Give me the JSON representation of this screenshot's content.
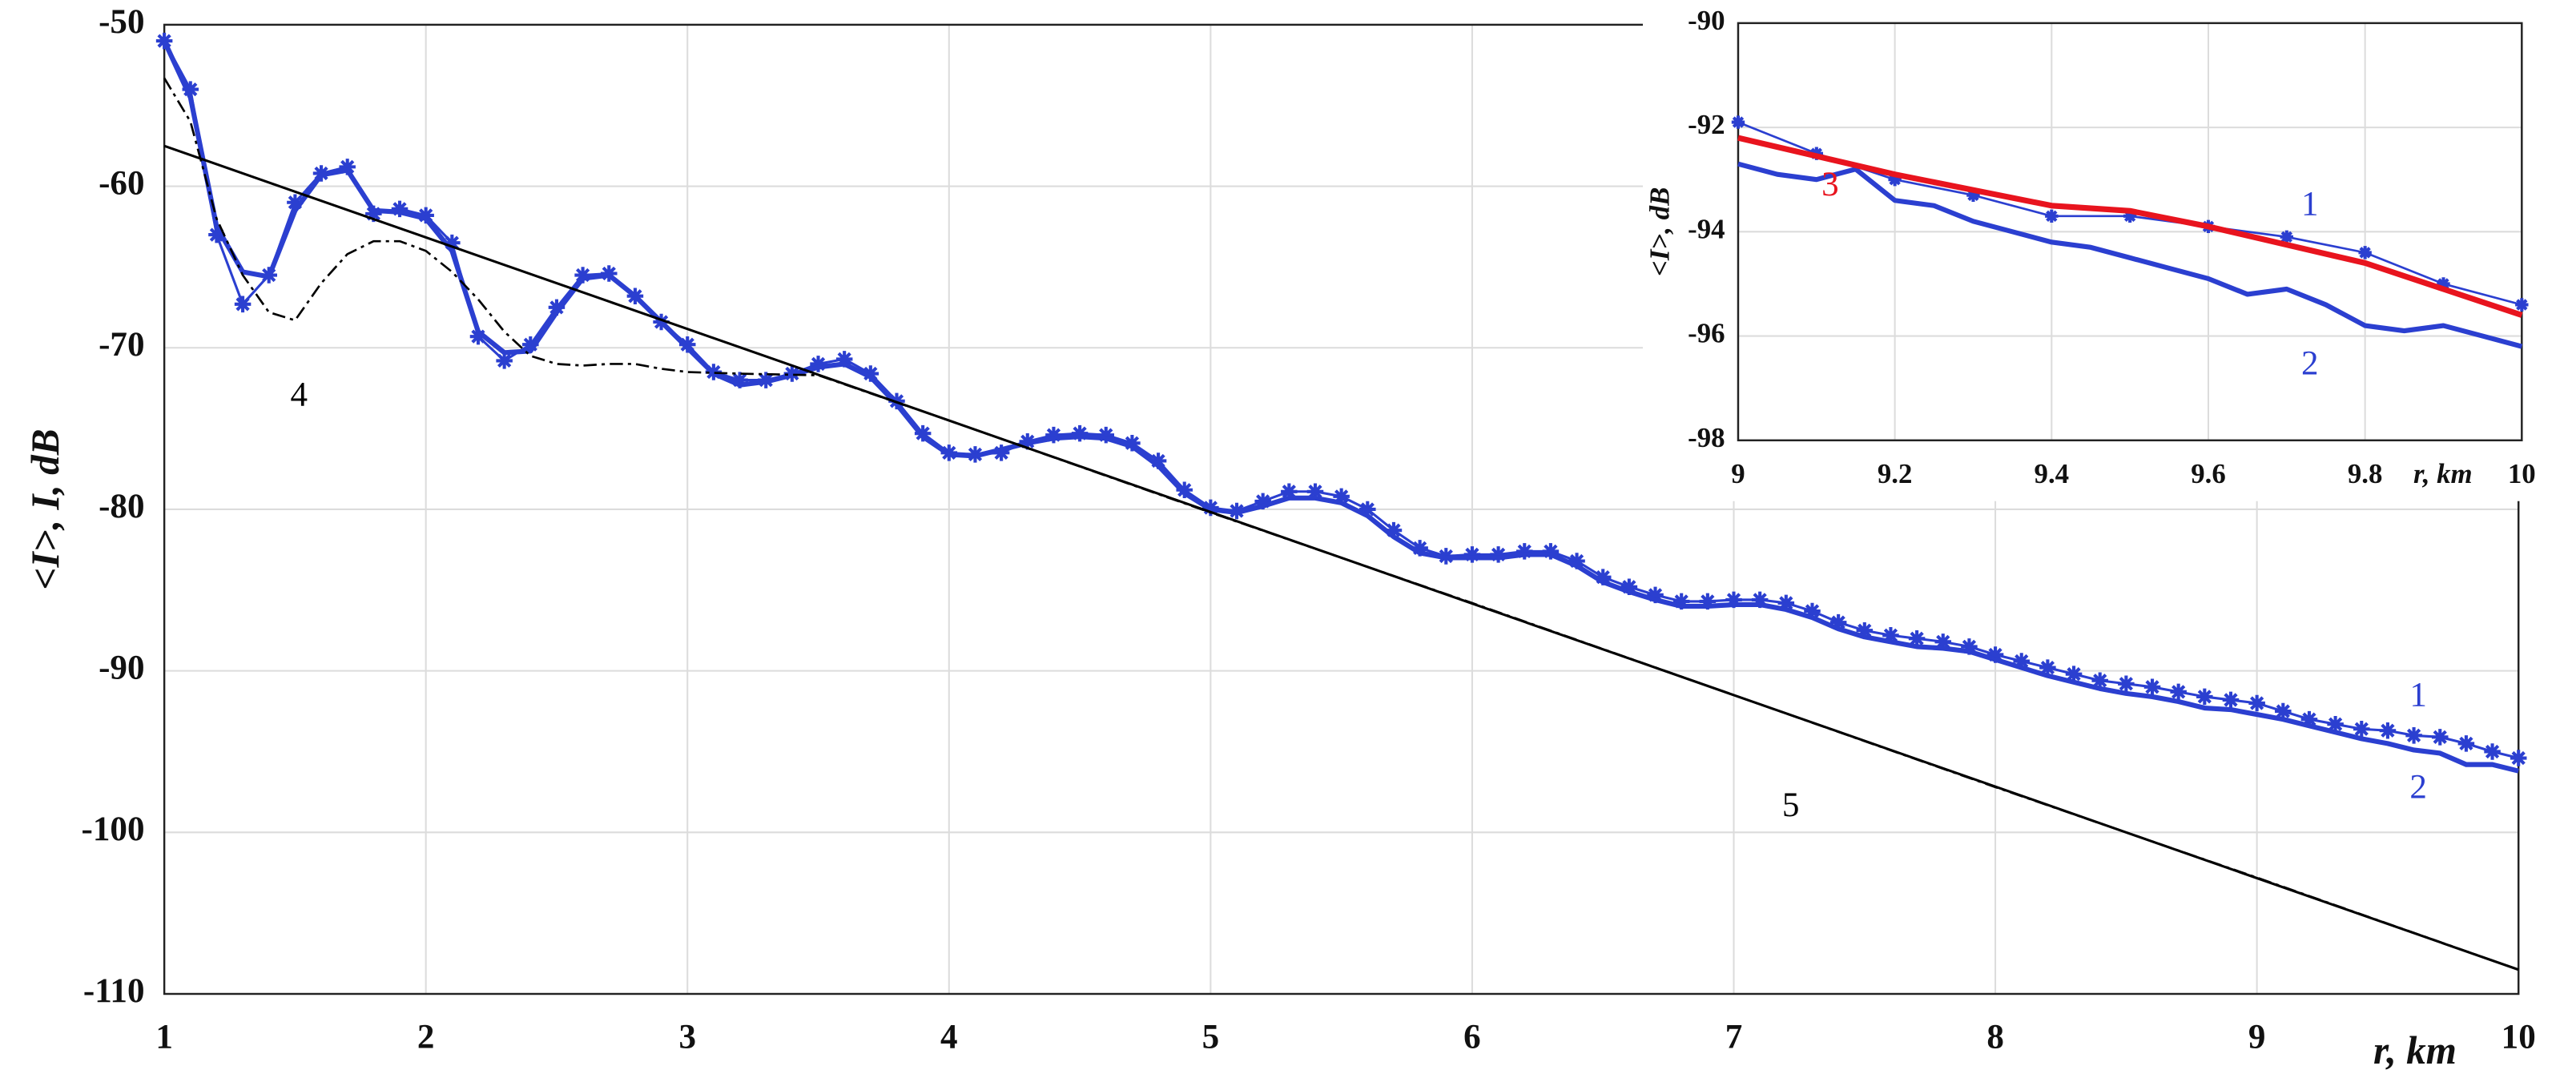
{
  "chart_data": [
    {
      "type": "line",
      "x_label": "r, km",
      "y_label": "<I>, I, dB",
      "xlim": [
        1,
        10
      ],
      "ylim": [
        -110,
        -50
      ],
      "xticks": [
        1,
        2,
        3,
        4,
        5,
        6,
        7,
        8,
        9,
        10
      ],
      "yticks": [
        -110,
        -100,
        -90,
        -80,
        -70,
        -60,
        -50
      ],
      "grid": true,
      "series": [
        {
          "name": "1",
          "color": "#2b3fd0",
          "marker": "star",
          "linewidth": 1.5,
          "x": [
            1,
            1.1,
            1.2,
            1.3,
            1.4,
            1.5,
            1.6,
            1.7,
            1.8,
            1.9,
            2,
            2.1,
            2.2,
            2.3,
            2.4,
            2.5,
            2.6,
            2.7,
            2.8,
            2.9,
            3,
            3.1,
            3.2,
            3.3,
            3.4,
            3.5,
            3.6,
            3.7,
            3.8,
            3.9,
            4,
            4.1,
            4.2,
            4.3,
            4.4,
            4.5,
            4.6,
            4.7,
            4.8,
            4.9,
            5,
            5.1,
            5.2,
            5.3,
            5.4,
            5.5,
            5.6,
            5.7,
            5.8,
            5.9,
            6,
            6.1,
            6.2,
            6.3,
            6.4,
            6.5,
            6.6,
            6.7,
            6.8,
            6.9,
            7,
            7.1,
            7.2,
            7.3,
            7.4,
            7.5,
            7.6,
            7.7,
            7.8,
            7.9,
            8,
            8.1,
            8.2,
            8.3,
            8.4,
            8.5,
            8.6,
            8.7,
            8.8,
            8.9,
            9,
            9.1,
            9.2,
            9.3,
            9.4,
            9.5,
            9.6,
            9.7,
            9.8,
            9.9,
            10
          ],
          "values": [
            -51,
            -54,
            -63,
            -67.3,
            -65.5,
            -61,
            -59.2,
            -58.8,
            -61.7,
            -61.4,
            -61.8,
            -63.5,
            -69.3,
            -70.8,
            -69.8,
            -67.5,
            -65.5,
            -65.4,
            -66.8,
            -68.4,
            -69.8,
            -71.5,
            -72,
            -72,
            -71.6,
            -71,
            -70.7,
            -71.6,
            -73.3,
            -75.3,
            -76.5,
            -76.6,
            -76.5,
            -75.8,
            -75.4,
            -75.3,
            -75.4,
            -75.9,
            -77,
            -78.8,
            -79.9,
            -80.1,
            -79.5,
            -78.9,
            -78.9,
            -79.2,
            -80,
            -81.3,
            -82.4,
            -82.9,
            -82.8,
            -82.8,
            -82.6,
            -82.6,
            -83.2,
            -84.2,
            -84.8,
            -85.3,
            -85.7,
            -85.7,
            -85.6,
            -85.6,
            -85.8,
            -86.3,
            -87,
            -87.5,
            -87.8,
            -88,
            -88.2,
            -88.5,
            -89,
            -89.4,
            -89.8,
            -90.2,
            -90.6,
            -90.8,
            -91,
            -91.3,
            -91.6,
            -91.8,
            -92,
            -92.5,
            -93,
            -93.3,
            -93.6,
            -93.7,
            -94,
            -94.1,
            -94.5,
            -95,
            -95.4
          ]
        },
        {
          "name": "2",
          "color": "#2b3fd0",
          "linewidth": 3,
          "x": [
            1,
            1.1,
            1.2,
            1.3,
            1.4,
            1.5,
            1.6,
            1.7,
            1.8,
            1.9,
            2,
            2.1,
            2.2,
            2.3,
            2.4,
            2.5,
            2.6,
            2.7,
            2.8,
            2.9,
            3,
            3.1,
            3.2,
            3.3,
            3.4,
            3.5,
            3.6,
            3.7,
            3.8,
            3.9,
            4,
            4.1,
            4.2,
            4.3,
            4.4,
            4.5,
            4.6,
            4.7,
            4.8,
            4.9,
            5,
            5.1,
            5.2,
            5.3,
            5.4,
            5.5,
            5.6,
            5.7,
            5.8,
            5.9,
            6,
            6.1,
            6.2,
            6.3,
            6.4,
            6.5,
            6.6,
            6.7,
            6.8,
            6.9,
            7,
            7.1,
            7.2,
            7.3,
            7.4,
            7.5,
            7.6,
            7.7,
            7.8,
            7.9,
            8,
            8.1,
            8.2,
            8.3,
            8.4,
            8.5,
            8.6,
            8.7,
            8.8,
            8.9,
            9,
            9.1,
            9.2,
            9.3,
            9.4,
            9.5,
            9.6,
            9.7,
            9.8,
            9.9,
            10
          ],
          "values": [
            -51,
            -54.5,
            -62.5,
            -65.3,
            -65.6,
            -61.5,
            -59.3,
            -59,
            -61.5,
            -61.6,
            -62,
            -64,
            -69,
            -70.3,
            -70.2,
            -67.8,
            -65.7,
            -65.5,
            -66.8,
            -68.4,
            -70,
            -71.6,
            -72.3,
            -72.1,
            -71.7,
            -71.2,
            -71,
            -71.8,
            -73.5,
            -75.5,
            -76.6,
            -76.7,
            -76.3,
            -75.9,
            -75.6,
            -75.5,
            -75.6,
            -76.1,
            -77.3,
            -79,
            -80,
            -80.2,
            -79.8,
            -79.3,
            -79.3,
            -79.6,
            -80.4,
            -81.7,
            -82.7,
            -83,
            -83,
            -83,
            -82.8,
            -82.8,
            -83.5,
            -84.5,
            -85.1,
            -85.6,
            -86,
            -86,
            -85.9,
            -85.9,
            -86.2,
            -86.7,
            -87.4,
            -87.9,
            -88.2,
            -88.5,
            -88.6,
            -88.8,
            -89.3,
            -89.8,
            -90.3,
            -90.7,
            -91.1,
            -91.4,
            -91.6,
            -91.9,
            -92.3,
            -92.4,
            -92.7,
            -93,
            -93.4,
            -93.8,
            -94.2,
            -94.5,
            -94.9,
            -95.1,
            -95.8,
            -95.8,
            -96.2
          ]
        },
        {
          "name": "4",
          "color": "#000000",
          "dash": "dashdot",
          "linewidth": 1.3,
          "x": [
            1,
            1.1,
            1.2,
            1.3,
            1.4,
            1.5,
            1.6,
            1.7,
            1.8,
            1.9,
            2,
            2.1,
            2.2,
            2.3,
            2.4,
            2.5,
            2.6,
            2.7,
            2.8,
            2.9,
            3,
            3.2,
            3.5,
            4,
            5,
            6,
            7,
            8,
            9,
            10
          ],
          "values": [
            -53.3,
            -56,
            -62,
            -65.5,
            -67.8,
            -68.3,
            -66,
            -64.2,
            -63.4,
            -63.4,
            -64,
            -65.3,
            -67,
            -69,
            -70.5,
            -71,
            -71.1,
            -71,
            -71,
            -71.3,
            -71.5,
            -71.6,
            -71.7,
            -74.5,
            -80.2,
            -85.8,
            -91.5,
            -97.2,
            -102.8,
            -108.5
          ]
        },
        {
          "name": "5",
          "color": "#000000",
          "linewidth": 1.5,
          "x": [
            1,
            10
          ],
          "values": [
            -57.5,
            -108.5
          ]
        }
      ],
      "annotations": [
        {
          "text": "4",
          "color": "#000000"
        },
        {
          "text": "5",
          "color": "#000000"
        },
        {
          "text": "1",
          "color": "#2b3fd0"
        },
        {
          "text": "2",
          "color": "#2b3fd0"
        }
      ]
    },
    {
      "type": "line",
      "x_label": "r, km",
      "y_label": "<I>, dB",
      "xlim": [
        9,
        10
      ],
      "ylim": [
        -98,
        -90
      ],
      "xticks": [
        9,
        9.2,
        9.4,
        9.6,
        9.8,
        10
      ],
      "yticks": [
        -98,
        -96,
        -94,
        -92,
        -90
      ],
      "grid": true,
      "series": [
        {
          "name": "1",
          "color": "#2b3fd0",
          "marker": "star",
          "linewidth": 1.3,
          "x": [
            9,
            9.1,
            9.2,
            9.3,
            9.4,
            9.5,
            9.6,
            9.7,
            9.8,
            9.9,
            10
          ],
          "values": [
            -91.9,
            -92.5,
            -93,
            -93.3,
            -93.7,
            -93.7,
            -93.9,
            -94.1,
            -94.4,
            -95,
            -95.4
          ]
        },
        {
          "name": "2",
          "color": "#2b3fd0",
          "linewidth": 3,
          "x": [
            9,
            9.05,
            9.1,
            9.15,
            9.2,
            9.25,
            9.3,
            9.35,
            9.4,
            9.45,
            9.5,
            9.55,
            9.6,
            9.65,
            9.7,
            9.75,
            9.8,
            9.85,
            9.9,
            9.95,
            10
          ],
          "values": [
            -92.7,
            -92.9,
            -93,
            -92.8,
            -93.4,
            -93.5,
            -93.8,
            -94,
            -94.2,
            -94.3,
            -94.5,
            -94.7,
            -94.9,
            -95.2,
            -95.1,
            -95.4,
            -95.8,
            -95.9,
            -95.8,
            -96,
            -96.2
          ]
        },
        {
          "name": "3",
          "color": "#e8141e",
          "linewidth": 3.5,
          "x": [
            9,
            9.2,
            9.4,
            9.5,
            9.6,
            9.8,
            10
          ],
          "values": [
            -92.2,
            -92.9,
            -93.5,
            -93.6,
            -93.9,
            -94.6,
            -95.6
          ]
        }
      ],
      "annotations": [
        {
          "text": "3",
          "color": "#e8141e"
        },
        {
          "text": "1",
          "color": "#2b3fd0"
        },
        {
          "text": "2",
          "color": "#2b3fd0"
        }
      ]
    }
  ]
}
